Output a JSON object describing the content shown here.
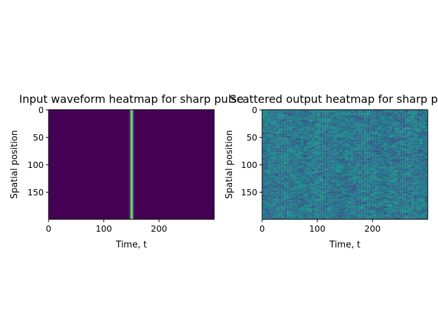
{
  "chart_data": [
    {
      "type": "heatmap",
      "title": "Input waveform heatmap for sharp pulse",
      "xlabel": "Time, t",
      "ylabel": "Spatial position",
      "xlim": [
        0,
        299
      ],
      "ylim": [
        199,
        0
      ],
      "xticks": [
        "0",
        "100",
        "200"
      ],
      "yticks": [
        "0",
        "50",
        "100",
        "150"
      ],
      "colormap": "viridis",
      "pulse": {
        "center_t": 150,
        "width_t": 3,
        "peak": 1.0
      },
      "grid": false
    },
    {
      "type": "heatmap",
      "title": "Scattered output heatmap for sharp pulse",
      "xlabel": "Time, t",
      "ylabel": "Spatial position",
      "xlim": [
        0,
        299
      ],
      "ylim": [
        199,
        0
      ],
      "xticks": [
        "0",
        "100",
        "200"
      ],
      "yticks": [
        "0",
        "50",
        "100",
        "150"
      ],
      "colormap": "viridis",
      "pattern": "random",
      "grid": false
    }
  ]
}
